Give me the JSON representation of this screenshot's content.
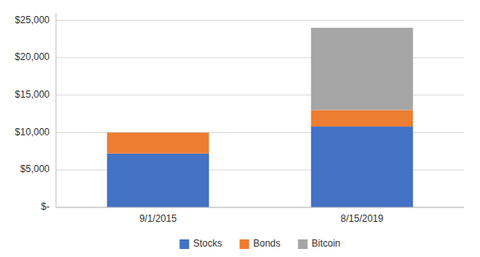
{
  "chart_data": {
    "type": "bar",
    "stacked": true,
    "categories": [
      "9/1/2015",
      "8/15/2019"
    ],
    "series": [
      {
        "name": "Stocks",
        "color": "#4472C4",
        "values": [
          7200,
          10800
        ]
      },
      {
        "name": "Bonds",
        "color": "#ED7D31",
        "values": [
          2800,
          2200
        ]
      },
      {
        "name": "Bitcoin",
        "color": "#A5A5A5",
        "values": [
          0,
          11000
        ]
      }
    ],
    "ylim": [
      0,
      26000
    ],
    "yticks": [
      {
        "value": 0,
        "label": "$-"
      },
      {
        "value": 5000,
        "label": "$5,000"
      },
      {
        "value": 10000,
        "label": "$10,000"
      },
      {
        "value": 15000,
        "label": "$15,000"
      },
      {
        "value": 20000,
        "label": "$20,000"
      },
      {
        "value": 25000,
        "label": "$25,000"
      }
    ],
    "grid": true,
    "legend": "bottom"
  }
}
